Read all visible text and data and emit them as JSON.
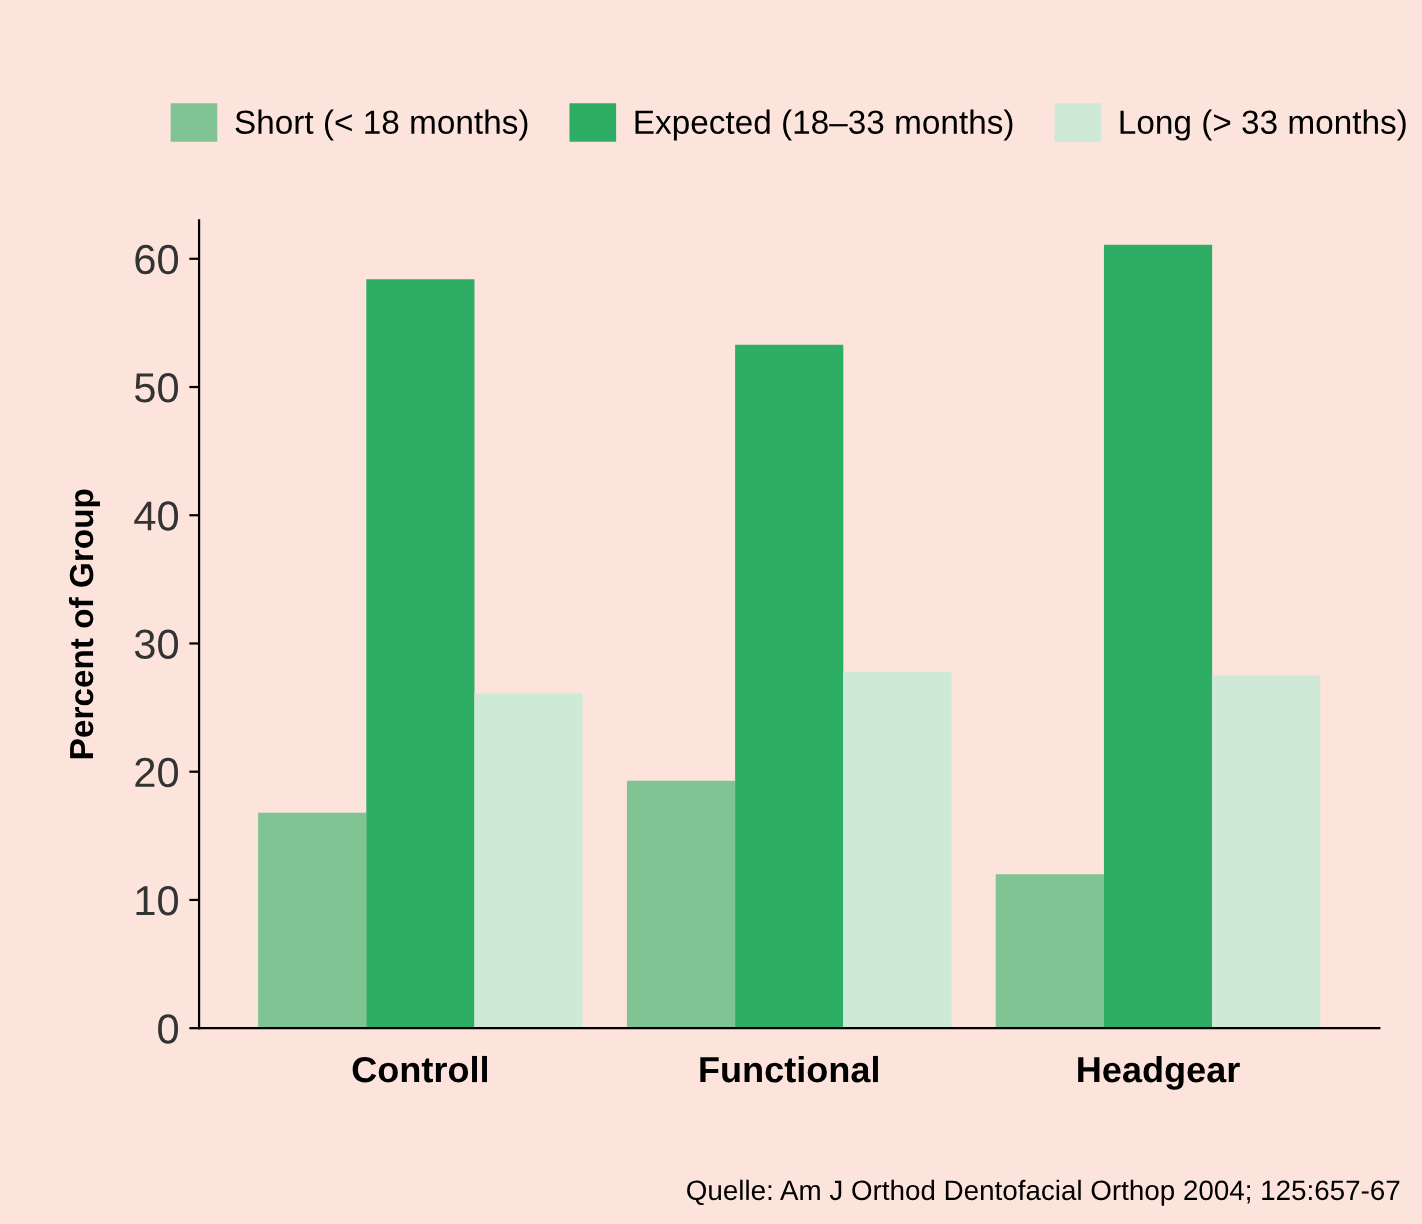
{
  "chart_data": {
    "type": "bar",
    "ylabel": "Percent of Group",
    "categories": [
      "Controll",
      "Functional",
      "Headgear"
    ],
    "series": [
      {
        "name": "Short (< 18 months)",
        "color": "#80c493",
        "values": [
          16.8,
          19.3,
          12.0
        ]
      },
      {
        "name": "Expected (18–33 months)",
        "color": "#2eae64",
        "values": [
          58.4,
          53.3,
          61.1
        ]
      },
      {
        "name": "Long (> 33 months)",
        "color": "#cfe9d7",
        "values": [
          26.1,
          27.8,
          27.5
        ]
      }
    ],
    "ylim": [
      0,
      63
    ],
    "yticks": [
      0,
      10,
      20,
      30,
      40,
      50,
      60
    ],
    "grid": false,
    "legend": "top",
    "annotations": [
      "Quelle: Am J Orthod Dentofacial Orthop 2004; 125:657-67"
    ]
  }
}
